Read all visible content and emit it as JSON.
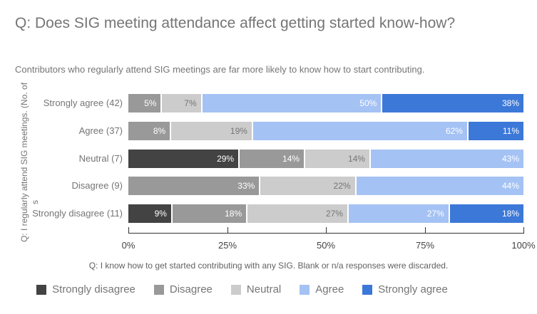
{
  "header": {
    "title": "Q: Does SIG meeting attendance affect getting started know-how?",
    "subtitle": "Contributors who regularly attend SIG meetings are far more likely to know how to start contributing."
  },
  "y_axis": {
    "title_line1": "Q: I regularly attend SIG meetings. (No. of",
    "title_line2": "s"
  },
  "x_axis": {
    "tick_labels": [
      "0%",
      "25%",
      "50%",
      "75%",
      "100%"
    ]
  },
  "footnote": "Q: I know how to get started contributing with any SIG. Blank or n/a responses were discarded.",
  "legend": {
    "items": [
      {
        "label": "Strongly disagree",
        "color": "#434343"
      },
      {
        "label": "Disagree",
        "color": "#999999"
      },
      {
        "label": "Neutral",
        "color": "#cccccc"
      },
      {
        "label": "Agree",
        "color": "#a4c2f4"
      },
      {
        "label": "Strongly agree",
        "color": "#3c78d8"
      }
    ]
  },
  "colors": {
    "title_text": "#757575",
    "axis_line": "#333333",
    "tick_text": "#444444",
    "segment_label_on_dark": "#ffffff",
    "segment_label_on_light": "#757575"
  },
  "chart_data": {
    "type": "bar",
    "orientation": "horizontal",
    "stacked": true,
    "unit": "%",
    "xlim": [
      0,
      100
    ],
    "grid": false,
    "legend_position": "bottom",
    "title": "Q: Does SIG meeting attendance affect getting started know-how?",
    "xlabel": "",
    "ylabel": "Q: I regularly attend SIG meetings. (No. of s",
    "categories": [
      "Strongly agree (42)",
      "Agree (37)",
      "Neutral (7)",
      "Disagree (9)",
      "Strongly disagree (11)"
    ],
    "series": [
      {
        "name": "Strongly disagree",
        "color": "#434343",
        "values": [
          0,
          0,
          29,
          0,
          9
        ]
      },
      {
        "name": "Disagree",
        "color": "#999999",
        "values": [
          5,
          8,
          14,
          33,
          18
        ]
      },
      {
        "name": "Neutral",
        "color": "#cccccc",
        "values": [
          7,
          19,
          14,
          22,
          27
        ]
      },
      {
        "name": "Agree",
        "color": "#a4c2f4",
        "values": [
          50,
          62,
          43,
          44,
          27
        ]
      },
      {
        "name": "Strongly agree",
        "color": "#3c78d8",
        "values": [
          38,
          11,
          0,
          0,
          18
        ]
      }
    ]
  }
}
